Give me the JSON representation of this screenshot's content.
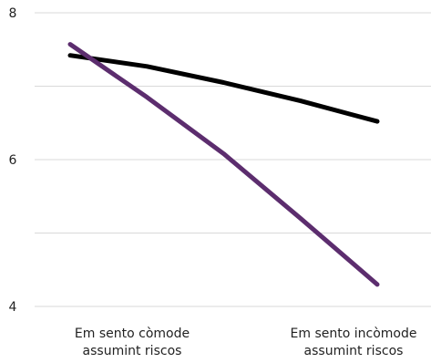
{
  "chart_data": {
    "type": "line",
    "categories": [
      "Em sento còmode assumint riscos",
      "Em sento incòmode assumint riscos"
    ],
    "category_lines": [
      [
        "Em sento còmode",
        "assumint riscos"
      ],
      [
        "Em sento incòmode",
        "assumint riscos"
      ]
    ],
    "x": [
      0,
      1,
      2,
      3,
      4
    ],
    "ylim": [
      4,
      8
    ],
    "yticks": [
      4,
      5,
      6,
      7,
      8
    ],
    "ytick_labels": [
      "4",
      "",
      "6",
      "",
      "8"
    ],
    "grid": true,
    "series": [
      {
        "color": "#000000",
        "values": [
          7.42,
          7.27,
          7.05,
          6.8,
          6.52
        ]
      },
      {
        "color": "#5c2d6e",
        "values": [
          7.57,
          6.85,
          6.08,
          5.2,
          4.3
        ]
      }
    ],
    "title": "",
    "xlabel": "",
    "ylabel": ""
  }
}
